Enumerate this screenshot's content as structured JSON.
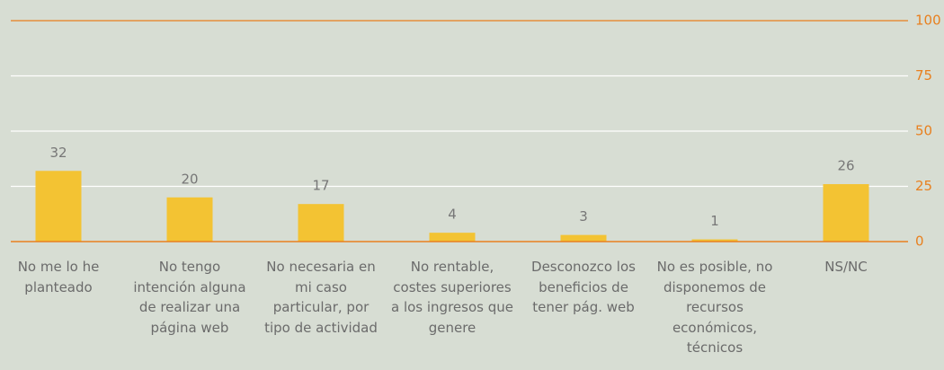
{
  "chart_data": {
    "type": "bar",
    "categories": [
      "No me lo he planteado",
      "No tengo intención alguna de realizar una página web",
      "No necesaria en mi caso particular, por tipo de actividad",
      "No rentable, costes superiores a los ingresos que genere",
      "Desconozco los beneficios de tener pág. web",
      "No es posible, no disponemos de recursos económicos, técnicos",
      "NS/NC"
    ],
    "values": [
      32,
      20,
      17,
      4,
      3,
      1,
      26
    ],
    "color": "#f3c333",
    "ylim": [
      0,
      100
    ],
    "yticks": [
      0,
      25,
      50,
      75,
      100
    ],
    "grid": true,
    "y_axis_side": "right"
  }
}
